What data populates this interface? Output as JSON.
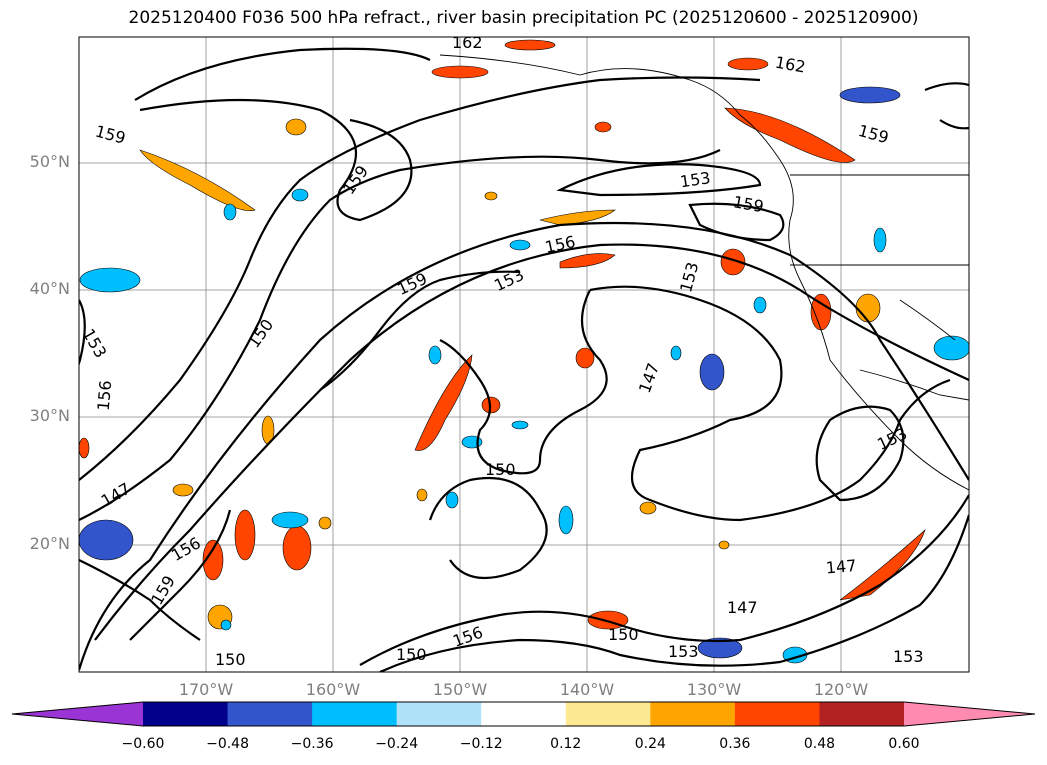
{
  "title": "2025120400 F036 500 hPa refract., river basin precipitation PC (2025120600 - 2025120900)",
  "map": {
    "lat_labels": [
      "50°N",
      "40°N",
      "30°N",
      "20°N"
    ],
    "lon_labels": [
      "170°W",
      "160°W",
      "150°W",
      "140°W",
      "130°W",
      "120°W"
    ],
    "contour_labels": [
      "162",
      "162",
      "159",
      "159",
      "159",
      "159",
      "159",
      "159",
      "153",
      "153",
      "153",
      "153",
      "153",
      "153",
      "153",
      "156",
      "156",
      "156",
      "156",
      "150",
      "150",
      "150",
      "150",
      "150",
      "147",
      "147",
      "147",
      "147"
    ],
    "colors": {
      "land_outline": "#000000",
      "grid": "#808080"
    }
  },
  "colorbar": {
    "ticks": [
      "−0.60",
      "−0.48",
      "−0.36",
      "−0.24",
      "−0.12",
      "0.12",
      "0.24",
      "0.36",
      "0.48",
      "0.60"
    ],
    "colors": [
      "#9a34d4",
      "#00008b",
      "#3355cc",
      "#00bfff",
      "#b0e2fa",
      "#ffffff",
      "#fde992",
      "#ffa500",
      "#ff4500",
      "#b22222",
      "#ff8cb0"
    ]
  }
}
